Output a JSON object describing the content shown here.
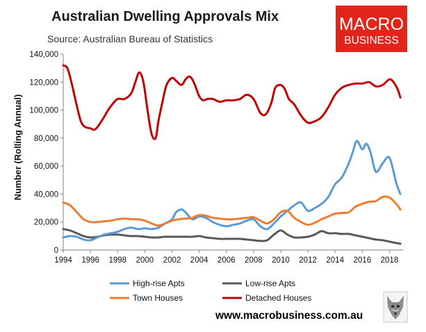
{
  "chart_data": {
    "type": "line",
    "title": "Australian Dwelling Approvals Mix",
    "subtitle": "Source: Australian Bureau of Statistics",
    "xlabel": "",
    "ylabel": "Number (Rolling Annual)",
    "xlim": [
      1994,
      2019
    ],
    "ylim": [
      0,
      140000
    ],
    "x_ticks": [
      1994,
      1996,
      1998,
      2000,
      2002,
      2004,
      2006,
      2008,
      2010,
      2012,
      2014,
      2016,
      2018
    ],
    "y_ticks": [
      0,
      20000,
      40000,
      60000,
      80000,
      100000,
      120000,
      140000
    ],
    "y_tick_labels": [
      "0",
      "20,000",
      "40,000",
      "60,000",
      "80,000",
      "100,000",
      "120,000",
      "140,000"
    ],
    "grid": false,
    "legend_position": "bottom",
    "series": [
      {
        "name": "High-rise Apts",
        "color": "#5b9bd5",
        "x": [
          1994,
          1994.5,
          1995,
          1995.5,
          1996,
          1996.5,
          1997,
          1997.5,
          1998,
          1998.5,
          1999,
          1999.5,
          2000,
          2000.5,
          2001,
          2001.5,
          2002,
          2002.3,
          2002.7,
          2003,
          2003.5,
          2004,
          2004.5,
          2005,
          2005.5,
          2006,
          2006.5,
          2007,
          2007.5,
          2008,
          2008.5,
          2009,
          2009.5,
          2010,
          2010.5,
          2011,
          2011.5,
          2012,
          2012.5,
          2013,
          2013.5,
          2014,
          2014.5,
          2015,
          2015.3,
          2015.6,
          2016,
          2016.3,
          2016.6,
          2017,
          2017.5,
          2018,
          2018.5,
          2018.8
        ],
        "values": [
          9000,
          10000,
          9500,
          7500,
          7000,
          9000,
          11000,
          12000,
          13000,
          15000,
          16000,
          15000,
          15500,
          15000,
          16000,
          19000,
          22000,
          27000,
          29000,
          27000,
          22000,
          24000,
          23000,
          20000,
          18000,
          17000,
          18000,
          19000,
          21000,
          22000,
          17000,
          15000,
          19000,
          24000,
          28000,
          32000,
          34000,
          28000,
          30000,
          33000,
          38000,
          47000,
          52000,
          62000,
          70000,
          78000,
          72000,
          76000,
          70000,
          56000,
          62000,
          66000,
          48000,
          40000
        ]
      },
      {
        "name": "Low-rise Apts",
        "color": "#595959",
        "x": [
          1994,
          1994.5,
          1995,
          1995.5,
          1996,
          1996.5,
          1997,
          1997.5,
          1998,
          1998.5,
          1999,
          1999.5,
          2000,
          2000.5,
          2001,
          2001.5,
          2002,
          2002.5,
          2003,
          2003.5,
          2004,
          2004.5,
          2005,
          2005.5,
          2006,
          2006.5,
          2007,
          2007.5,
          2008,
          2008.5,
          2009,
          2009.5,
          2010,
          2010.5,
          2011,
          2011.5,
          2012,
          2012.5,
          2013,
          2013.5,
          2014,
          2014.5,
          2015,
          2015.5,
          2016,
          2016.5,
          2017,
          2017.5,
          2018,
          2018.5,
          2018.8
        ],
        "values": [
          15000,
          14000,
          12000,
          10000,
          9000,
          9500,
          10500,
          11000,
          11000,
          10500,
          10000,
          10000,
          9500,
          9000,
          9000,
          9500,
          9500,
          9500,
          9500,
          9500,
          10000,
          9000,
          8500,
          8000,
          8000,
          8000,
          8000,
          7500,
          7000,
          6500,
          7000,
          11000,
          14000,
          11000,
          9000,
          9000,
          9500,
          11000,
          13500,
          12000,
          12000,
          11500,
          11500,
          10500,
          9500,
          8500,
          7500,
          7000,
          6000,
          5000,
          4500
        ]
      },
      {
        "name": "Town Houses",
        "color": "#ed7d31",
        "x": [
          1994,
          1994.5,
          1995,
          1995.5,
          1996,
          1996.5,
          1997,
          1997.5,
          1998,
          1998.5,
          1999,
          1999.5,
          2000,
          2000.5,
          2001,
          2001.5,
          2002,
          2002.5,
          2003,
          2003.5,
          2004,
          2004.5,
          2005,
          2005.5,
          2006,
          2006.5,
          2007,
          2007.5,
          2008,
          2008.5,
          2009,
          2009.5,
          2010,
          2010.5,
          2011,
          2011.5,
          2012,
          2012.5,
          2013,
          2013.5,
          2014,
          2014.5,
          2015,
          2015.5,
          2016,
          2016.5,
          2017,
          2017.5,
          2018,
          2018.5,
          2018.8
        ],
        "values": [
          34000,
          32000,
          27000,
          22000,
          20000,
          20000,
          20500,
          21000,
          22000,
          22500,
          22000,
          22000,
          21000,
          19000,
          17500,
          19000,
          21000,
          22000,
          22500,
          23000,
          25000,
          24500,
          23000,
          22500,
          22000,
          22000,
          22500,
          23000,
          23500,
          21000,
          19000,
          22000,
          27000,
          28000,
          23000,
          20000,
          18000,
          19500,
          22000,
          24000,
          26000,
          26500,
          27000,
          31000,
          33000,
          34500,
          35000,
          38000,
          37500,
          33000,
          29000
        ]
      },
      {
        "name": "Detached Houses",
        "color": "#c00000",
        "x": [
          1994,
          1994.3,
          1994.6,
          1995,
          1995.3,
          1995.6,
          1996,
          1996.3,
          1996.6,
          1997,
          1997.3,
          1997.6,
          1998,
          1998.5,
          1999,
          1999.3,
          1999.6,
          1999.9,
          2000.2,
          2000.5,
          2000.8,
          2001,
          2001.3,
          2001.6,
          2002,
          2002.3,
          2002.7,
          2003,
          2003.3,
          2003.6,
          2004,
          2004.3,
          2004.6,
          2005,
          2005.5,
          2006,
          2006.5,
          2007,
          2007.5,
          2008,
          2008.5,
          2008.9,
          2009.3,
          2009.6,
          2010,
          2010.3,
          2010.6,
          2011,
          2011.5,
          2012,
          2012.5,
          2013,
          2013.5,
          2014,
          2014.5,
          2015,
          2015.5,
          2016,
          2016.5,
          2017,
          2017.5,
          2018,
          2018.3,
          2018.6,
          2018.8
        ],
        "values": [
          132000,
          130000,
          120000,
          103000,
          92000,
          88000,
          87000,
          86000,
          89000,
          95000,
          100000,
          104000,
          108000,
          108000,
          112000,
          120000,
          127000,
          120000,
          100000,
          83000,
          80000,
          92000,
          106000,
          118000,
          123000,
          121000,
          118000,
          122000,
          124000,
          120000,
          110000,
          107000,
          108000,
          108000,
          106000,
          107000,
          107000,
          108000,
          111000,
          108000,
          98000,
          97000,
          105000,
          116000,
          118000,
          115000,
          108000,
          104000,
          96000,
          91000,
          92000,
          95000,
          102000,
          111000,
          116000,
          118000,
          119000,
          119000,
          120000,
          117000,
          118000,
          122000,
          120000,
          115000,
          109000
        ]
      }
    ]
  },
  "branding": {
    "logo_line1": "MACRO",
    "logo_line2": "BUSINESS",
    "logo_color": "#e1251b",
    "website": "www.macrobusiness.com.au"
  }
}
